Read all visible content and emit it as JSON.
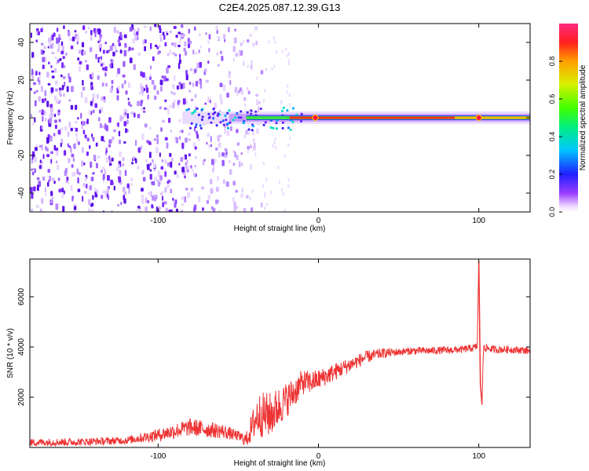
{
  "figure": {
    "title": "C2E4.2025.087.12.39.G13"
  },
  "chart_data": [
    {
      "type": "heatmap",
      "xlabel": "Height of straight line (km)",
      "ylabel": "Frequency (Hz)",
      "xlim": [
        -180,
        132
      ],
      "ylim": [
        -50,
        50
      ],
      "xticks": [
        -100,
        0,
        100
      ],
      "yticks": [
        -40,
        -20,
        0,
        20,
        40
      ],
      "colorbar": {
        "label": "Normalized spectral amplitude",
        "range": [
          0,
          1
        ],
        "ticks": [
          0.0,
          0.2,
          0.4,
          0.6,
          0.8
        ],
        "colormap": "rainbow (violet-blue-cyan-green-yellow-red-magenta)"
      },
      "features": {
        "noise_region_km": [
          -180,
          -48
        ],
        "carrier_frequency_hz": 0,
        "carrier_start_km": -85,
        "peak_amplitude_positions_km": [
          -2,
          100
        ]
      },
      "grid": false
    },
    {
      "type": "line",
      "xlabel": "Height of straight line (km)",
      "ylabel": "SNR (10 * v/v)",
      "xlim": [
        -180,
        132
      ],
      "ylim": [
        0,
        7500
      ],
      "xticks": [
        -100,
        0,
        100
      ],
      "yticks": [
        2000,
        4000,
        6000
      ],
      "series": [
        {
          "color": "#ee3333",
          "x": [
            -180,
            -150,
            -120,
            -100,
            -80,
            -60,
            -50,
            -45,
            -38,
            -30,
            -25,
            -20,
            -15,
            -10,
            -5,
            0,
            10,
            20,
            30,
            40,
            50,
            60,
            70,
            80,
            90,
            95,
            99,
            100,
            101,
            102,
            103,
            105,
            110,
            120,
            132
          ],
          "y": [
            200,
            220,
            280,
            500,
            800,
            650,
            450,
            300,
            1300,
            1300,
            1600,
            1900,
            2200,
            2600,
            2600,
            2700,
            3000,
            3300,
            3600,
            3750,
            3800,
            3850,
            3850,
            3870,
            3900,
            3950,
            4000,
            7400,
            2500,
            1700,
            4100,
            3950,
            3900,
            3900,
            3850
          ],
          "noise_amplitude": [
            150,
            150,
            150,
            250,
            350,
            300,
            200,
            300,
            900,
            900,
            800,
            700,
            600,
            500,
            450,
            400,
            350,
            300,
            250,
            200,
            150,
            150,
            150,
            150,
            150,
            150,
            150,
            0,
            0,
            0,
            250,
            150,
            150,
            150,
            150
          ]
        }
      ],
      "grid": false
    }
  ]
}
